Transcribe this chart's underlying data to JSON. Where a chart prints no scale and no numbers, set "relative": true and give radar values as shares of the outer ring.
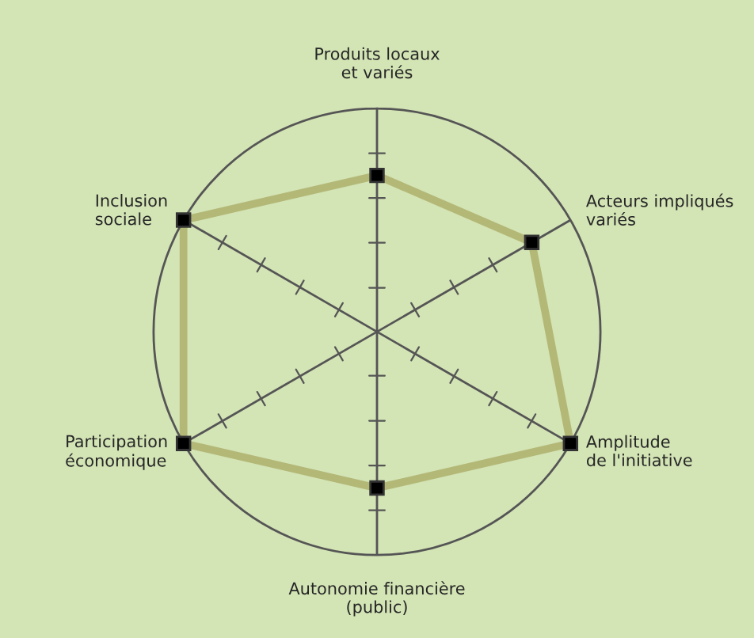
{
  "chart_data": {
    "type": "radar",
    "relative": true,
    "categories": [
      "Produits locaux\net variés",
      "Acteurs impliqués\nvariés",
      "Amplitude\nde l'initiative",
      "Autonomie financière\n(public)",
      "Participation\néconomique",
      "Inclusion\nsociale"
    ],
    "series": [
      {
        "color": "#b3b877",
        "values": [
          0.7,
          0.8,
          1.0,
          0.7,
          1.0,
          1.0
        ]
      }
    ],
    "marker": "square"
  }
}
